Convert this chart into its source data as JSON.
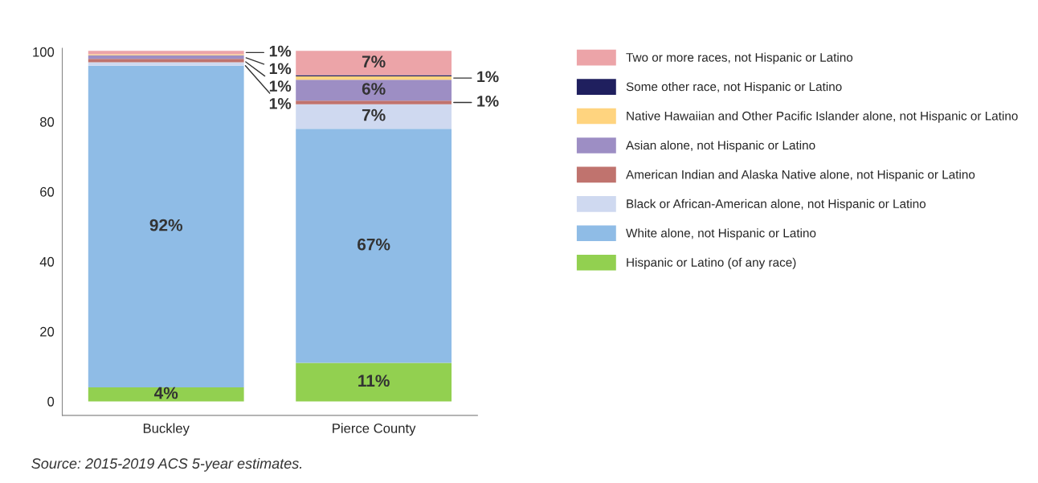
{
  "chart_data": {
    "type": "bar",
    "stacked": true,
    "categories": [
      "Buckley",
      "Pierce County"
    ],
    "series": [
      {
        "name": "Hispanic or Latino (of any race)",
        "color": "#92d050",
        "values": [
          4,
          11
        ],
        "value_labels": [
          "4%",
          "11%"
        ]
      },
      {
        "name": "White alone, not Hispanic or Latino",
        "color": "#8fbce6",
        "values": [
          92,
          67
        ],
        "value_labels": [
          "92%",
          "67%"
        ]
      },
      {
        "name": "Black or African-American alone, not Hispanic or Latino",
        "color": "#cfd9f0",
        "values": [
          1,
          7
        ],
        "value_labels": [
          "1%",
          "7%"
        ]
      },
      {
        "name": "American Indian and Alaska Native alone, not Hispanic or Latino",
        "color": "#c0736e",
        "values": [
          1,
          1
        ],
        "value_labels": [
          "1%",
          "1%"
        ]
      },
      {
        "name": "Asian alone, not Hispanic or Latino",
        "color": "#9d8ec4",
        "values": [
          1,
          6
        ],
        "value_labels": [
          "1%",
          "6%"
        ]
      },
      {
        "name": "Native Hawaiian and Other Pacific Islander alone, not Hispanic or Latino",
        "color": "#ffd47f",
        "values": [
          0.3,
          1
        ],
        "value_labels": [
          null,
          "1%"
        ]
      },
      {
        "name": "Some other race, not Hispanic or Latino",
        "color": "#1f1f5e",
        "values": [
          0,
          0.3
        ],
        "value_labels": [
          null,
          null
        ]
      },
      {
        "name": "Two or more races, not Hispanic or Latino",
        "color": "#eca4a8",
        "values": [
          1,
          7
        ],
        "value_labels": [
          "1%",
          "7%"
        ]
      }
    ],
    "ylim": [
      -4,
      101
    ],
    "yticks": [
      0,
      20,
      40,
      60,
      80,
      100
    ],
    "grid": false,
    "legend": "right",
    "annotations": [
      "Source: 2015-2019 ACS 5-year estimates."
    ]
  }
}
